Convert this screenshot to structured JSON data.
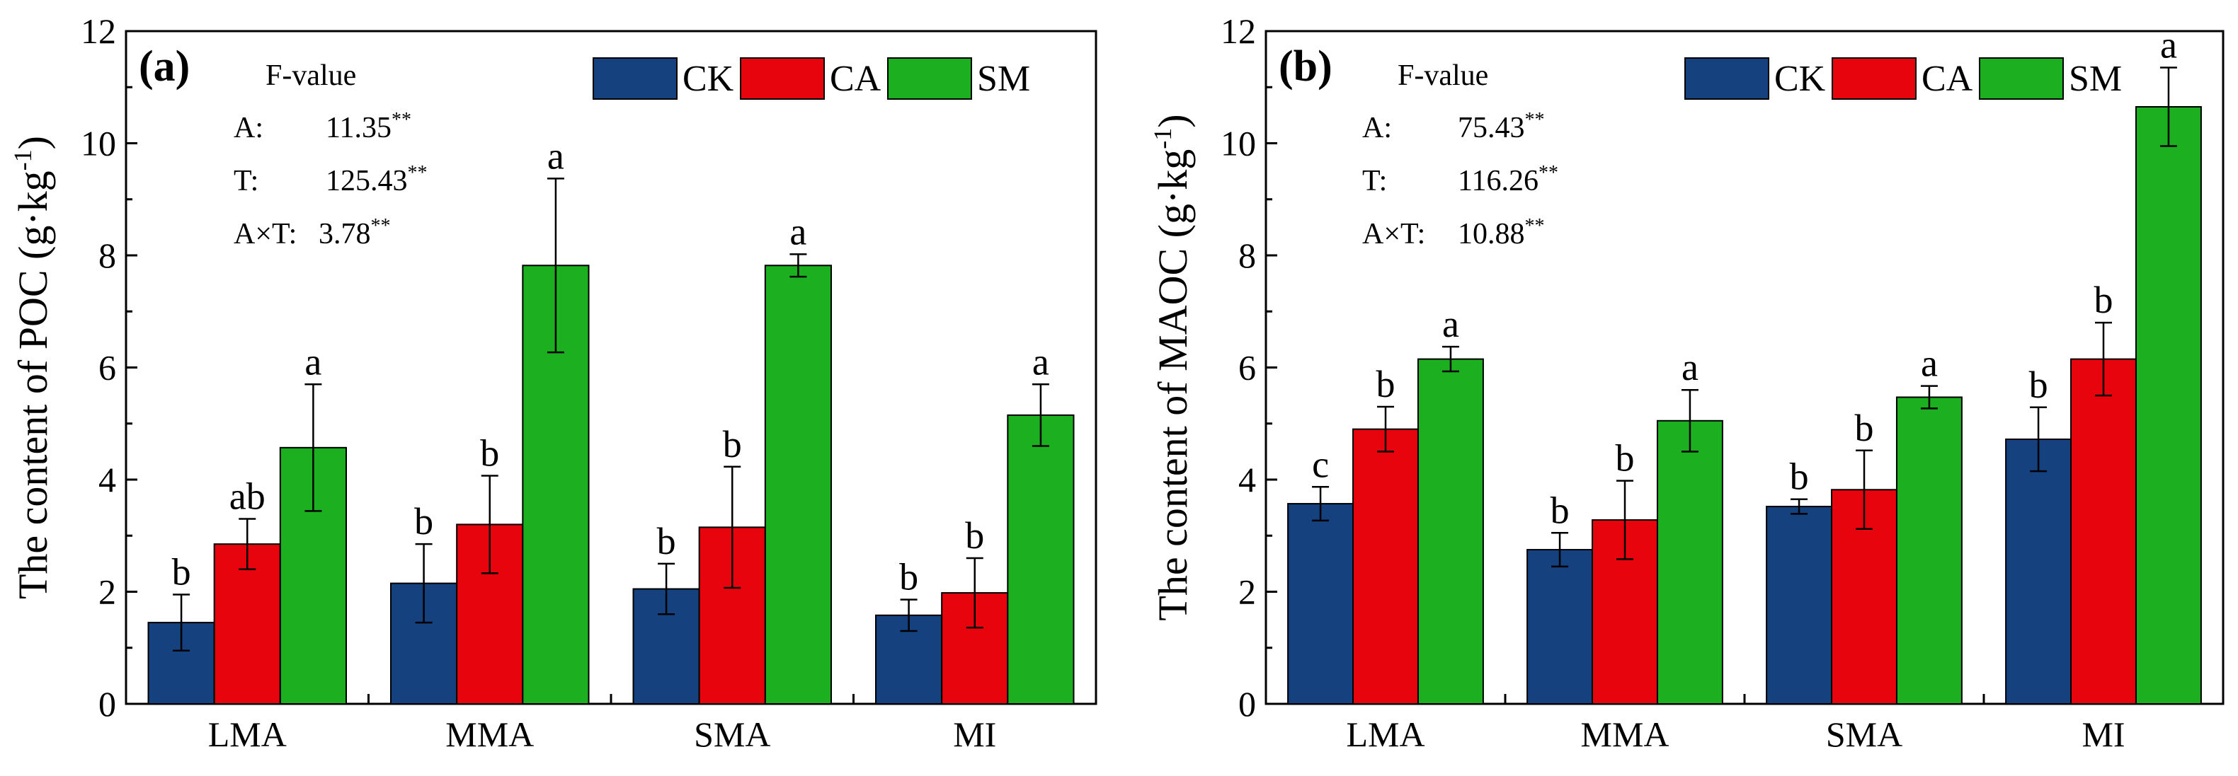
{
  "series_colors": {
    "CK": "#15417F",
    "CA": "#E7040C",
    "SM": "#1CAF1F"
  },
  "chart_data": [
    {
      "type": "bar",
      "panel_label": "(a)",
      "ylabel_main": "The content of POC (g·kg",
      "ylabel_sup": "-1",
      "ylabel_end": ")",
      "xlabel": "",
      "ylim": [
        0,
        12
      ],
      "yticks": [
        "0",
        "2",
        "4",
        "6",
        "8",
        "10",
        "12"
      ],
      "categories": [
        "LMA",
        "MMA",
        "SMA",
        "MI"
      ],
      "legend": [
        "CK",
        "CA",
        "SM"
      ],
      "series": [
        {
          "name": "CK",
          "values": [
            1.45,
            2.15,
            2.05,
            1.58
          ],
          "errors": [
            0.5,
            0.7,
            0.45,
            0.28
          ],
          "letters": [
            "b",
            "b",
            "b",
            "b"
          ]
        },
        {
          "name": "CA",
          "values": [
            2.85,
            3.2,
            3.15,
            1.98
          ],
          "errors": [
            0.45,
            0.87,
            1.08,
            0.62
          ],
          "letters": [
            "ab",
            "b",
            "b",
            "b"
          ]
        },
        {
          "name": "SM",
          "values": [
            4.57,
            7.82,
            7.82,
            5.15
          ],
          "errors": [
            1.13,
            1.55,
            0.2,
            0.55
          ],
          "letters": [
            "a",
            "a",
            "a",
            "a"
          ]
        }
      ],
      "anova": {
        "heading": "F-value",
        "rows": [
          {
            "term": "A:",
            "value": "11.35",
            "sig": "**"
          },
          {
            "term": "T:",
            "value": "125.43",
            "sig": "**"
          },
          {
            "term": "A×T:",
            "value": "3.78",
            "sig": "**"
          }
        ]
      }
    },
    {
      "type": "bar",
      "panel_label": "(b)",
      "ylabel_main": "The content of MAOC (g·kg",
      "ylabel_sup": "-1",
      "ylabel_end": ")",
      "xlabel": "",
      "ylim": [
        0,
        12
      ],
      "yticks": [
        "0",
        "2",
        "4",
        "6",
        "8",
        "10",
        "12"
      ],
      "categories": [
        "LMA",
        "MMA",
        "SMA",
        "MI"
      ],
      "legend": [
        "CK",
        "CA",
        "SM"
      ],
      "series": [
        {
          "name": "CK",
          "values": [
            3.57,
            2.75,
            3.52,
            4.72
          ],
          "errors": [
            0.3,
            0.3,
            0.13,
            0.57
          ],
          "letters": [
            "c",
            "b",
            "b",
            "b"
          ]
        },
        {
          "name": "CA",
          "values": [
            4.9,
            3.28,
            3.82,
            6.15
          ],
          "errors": [
            0.4,
            0.7,
            0.7,
            0.65
          ],
          "letters": [
            "b",
            "b",
            "b",
            "b"
          ]
        },
        {
          "name": "SM",
          "values": [
            6.15,
            5.05,
            5.47,
            10.65
          ],
          "errors": [
            0.22,
            0.55,
            0.2,
            0.7
          ],
          "letters": [
            "a",
            "a",
            "a",
            "a"
          ]
        }
      ],
      "anova": {
        "heading": "F-value",
        "rows": [
          {
            "term": "A:",
            "value": "75.43",
            "sig": "**"
          },
          {
            "term": "T:",
            "value": "116.26",
            "sig": "**"
          },
          {
            "term": "A×T:",
            "value": "10.88",
            "sig": "**"
          }
        ]
      }
    }
  ]
}
